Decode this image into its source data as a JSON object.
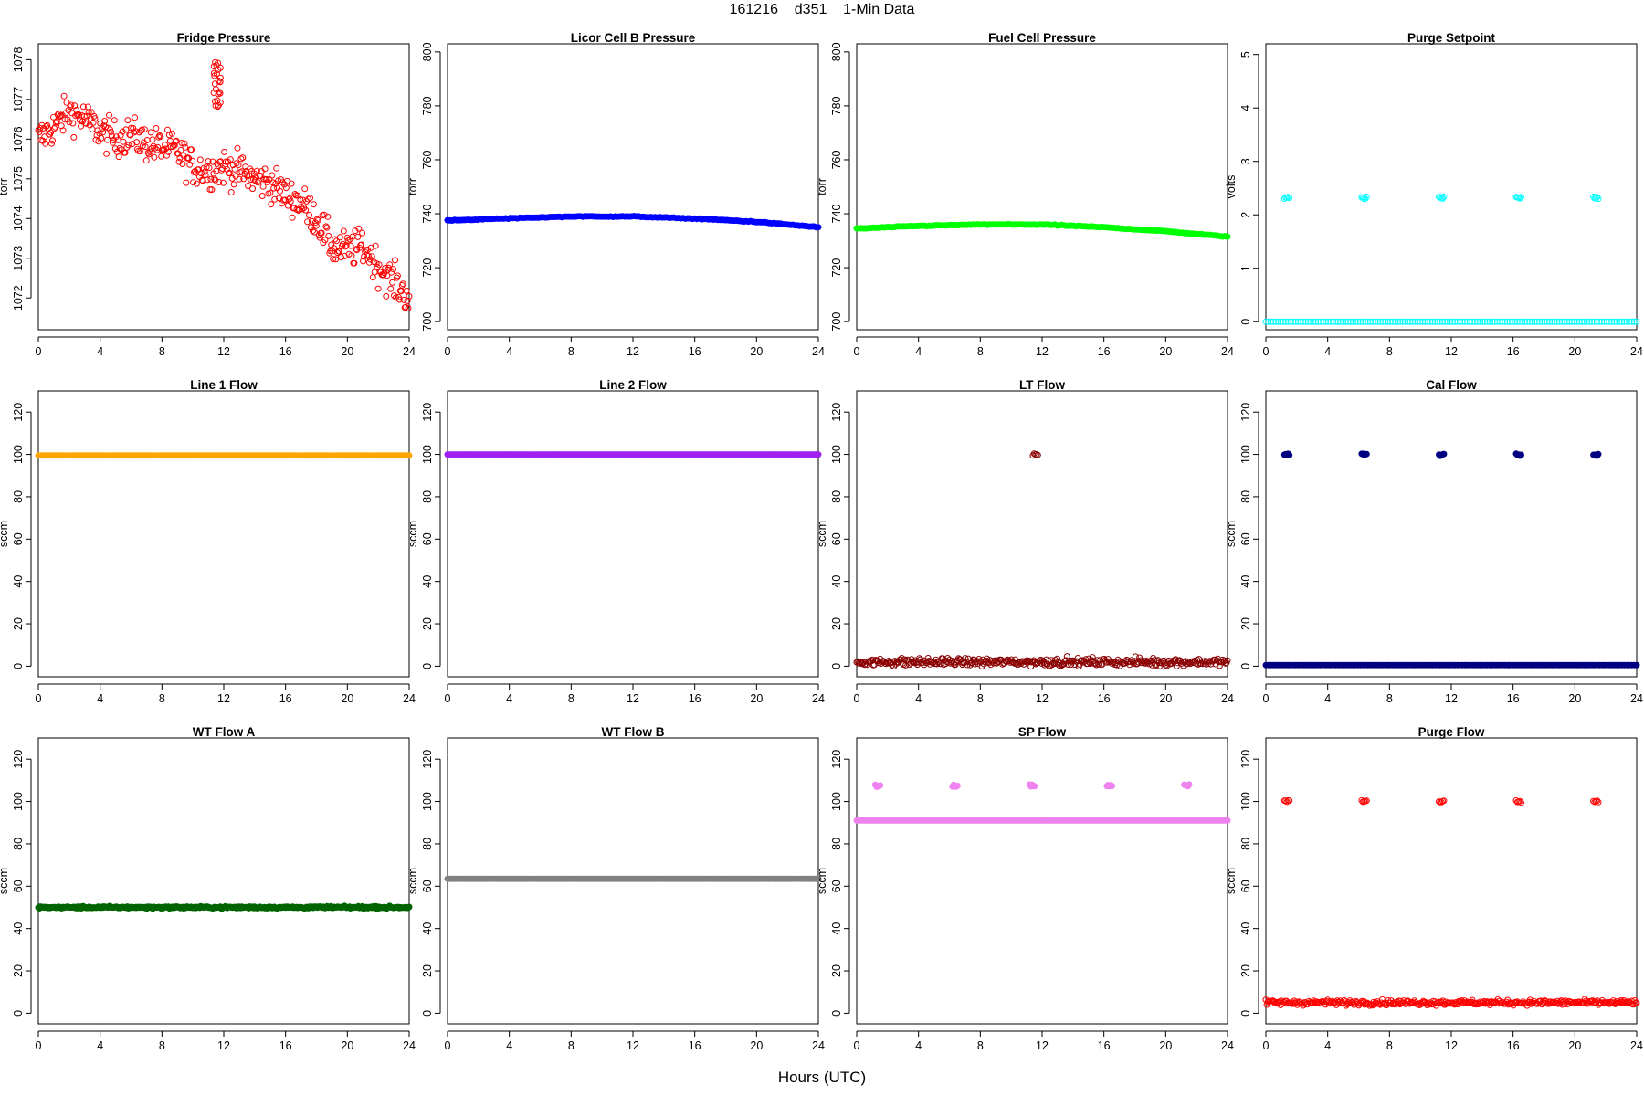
{
  "title": "161216    d351    1-Min Data",
  "x_caption": "Hours (UTC)",
  "chart_data": [
    {
      "name": "fridge-pressure",
      "type": "scatter",
      "title": "Fridge Pressure",
      "ylabel": "torr",
      "xlim": [
        0,
        24
      ],
      "ylim": [
        1071.2,
        1078.4
      ],
      "yticks": [
        1072,
        1073,
        1074,
        1075,
        1076,
        1077,
        1078
      ],
      "xticks": [
        0,
        4,
        8,
        12,
        16,
        20,
        24
      ],
      "color": "#ff0000",
      "marker": "open",
      "trend": [
        [
          0,
          1076.0
        ],
        [
          1,
          1076.3
        ],
        [
          2,
          1076.7
        ],
        [
          3,
          1076.5
        ],
        [
          4,
          1076.2
        ],
        [
          5,
          1076.0
        ],
        [
          6,
          1076.1
        ],
        [
          7,
          1075.9
        ],
        [
          8,
          1075.8
        ],
        [
          9,
          1075.7
        ],
        [
          10,
          1075.3
        ],
        [
          11,
          1075.2
        ],
        [
          12,
          1075.3
        ],
        [
          13,
          1075.2
        ],
        [
          14,
          1075.0
        ],
        [
          15,
          1074.9
        ],
        [
          16,
          1074.6
        ],
        [
          17,
          1074.4
        ],
        [
          18,
          1074.0
        ],
        [
          19,
          1073.3
        ],
        [
          20,
          1073.2
        ],
        [
          21,
          1073.3
        ],
        [
          22,
          1072.8
        ],
        [
          23,
          1072.4
        ],
        [
          24,
          1072.0
        ]
      ],
      "noise": 0.9,
      "spike": {
        "x": [
          11.3,
          11.8
        ],
        "y": [
          1076.8,
          1078.0
        ]
      }
    },
    {
      "name": "licor-cell-b-pressure",
      "type": "scatter",
      "title": "Licor Cell B Pressure",
      "ylabel": "torr",
      "xlim": [
        0,
        24
      ],
      "ylim": [
        697,
        803
      ],
      "yticks": [
        700,
        720,
        740,
        760,
        780,
        800
      ],
      "xticks": [
        0,
        4,
        8,
        12,
        16,
        20,
        24
      ],
      "color": "#0000ff",
      "marker": "filled",
      "trend": [
        [
          0,
          737.5
        ],
        [
          4,
          738.3
        ],
        [
          8,
          739.0
        ],
        [
          12,
          739.0
        ],
        [
          16,
          738.2
        ],
        [
          20,
          737.0
        ],
        [
          24,
          735.0
        ]
      ],
      "noise": 0.3
    },
    {
      "name": "fuel-cell-pressure",
      "type": "scatter",
      "title": "Fuel Cell Pressure",
      "ylabel": "torr",
      "xlim": [
        0,
        24
      ],
      "ylim": [
        697,
        803
      ],
      "yticks": [
        700,
        720,
        740,
        760,
        780,
        800
      ],
      "xticks": [
        0,
        4,
        8,
        12,
        16,
        20,
        24
      ],
      "color": "#00ff00",
      "marker": "filled",
      "trend": [
        [
          0,
          734.5
        ],
        [
          4,
          735.5
        ],
        [
          8,
          736.0
        ],
        [
          12,
          736.0
        ],
        [
          16,
          735.0
        ],
        [
          20,
          733.5
        ],
        [
          24,
          731.5
        ]
      ],
      "noise": 0.3
    },
    {
      "name": "purge-setpoint",
      "type": "scatter",
      "title": "Purge Setpoint",
      "ylabel": "volts",
      "xlim": [
        0,
        24
      ],
      "ylim": [
        -0.15,
        5.2
      ],
      "yticks": [
        0,
        1,
        2,
        3,
        4,
        5
      ],
      "xticks": [
        0,
        4,
        8,
        12,
        16,
        20,
        24
      ],
      "color": "#00ffff",
      "marker": "open",
      "baseline": 0,
      "bursts": {
        "x": [
          1.2,
          6.2,
          11.2,
          16.2,
          21.2
        ],
        "y": 2.32
      }
    },
    {
      "name": "line-1-flow",
      "type": "scatter",
      "title": "Line 1 Flow",
      "ylabel": "sccm",
      "xlim": [
        0,
        24
      ],
      "ylim": [
        -5,
        130
      ],
      "yticks": [
        0,
        20,
        40,
        60,
        80,
        100,
        120
      ],
      "xticks": [
        0,
        4,
        8,
        12,
        16,
        20,
        24
      ],
      "color": "#ffa500",
      "marker": "filled",
      "baseline": 99.5
    },
    {
      "name": "line-2-flow",
      "type": "scatter",
      "title": "Line 2 Flow",
      "ylabel": "sccm",
      "xlim": [
        0,
        24
      ],
      "ylim": [
        -5,
        130
      ],
      "yticks": [
        0,
        20,
        40,
        60,
        80,
        100,
        120
      ],
      "xticks": [
        0,
        4,
        8,
        12,
        16,
        20,
        24
      ],
      "color": "#a020f0",
      "marker": "filled",
      "baseline": 100
    },
    {
      "name": "lt-flow",
      "type": "scatter",
      "title": "LT Flow",
      "ylabel": "sccm",
      "xlim": [
        0,
        24
      ],
      "ylim": [
        -5,
        130
      ],
      "yticks": [
        0,
        20,
        40,
        60,
        80,
        100,
        120
      ],
      "xticks": [
        0,
        4,
        8,
        12,
        16,
        20,
        24
      ],
      "color": "#8b0000",
      "marker": "open",
      "baseline": 2,
      "noise": 3,
      "bursts": {
        "x": [
          11.4
        ],
        "y": 100
      }
    },
    {
      "name": "cal-flow",
      "type": "scatter",
      "title": "Cal Flow",
      "ylabel": "sccm",
      "xlim": [
        0,
        24
      ],
      "ylim": [
        -5,
        130
      ],
      "yticks": [
        0,
        20,
        40,
        60,
        80,
        100,
        120
      ],
      "xticks": [
        0,
        4,
        8,
        12,
        16,
        20,
        24
      ],
      "color": "#000080",
      "marker": "filled",
      "baseline": 0.5,
      "bursts": {
        "x": [
          1.2,
          6.2,
          11.2,
          16.2,
          21.2
        ],
        "y": 99.8
      }
    },
    {
      "name": "wt-flow-a",
      "type": "scatter",
      "title": "WT Flow A",
      "ylabel": "sccm",
      "xlim": [
        0,
        24
      ],
      "ylim": [
        -5,
        130
      ],
      "yticks": [
        0,
        20,
        40,
        60,
        80,
        100,
        120
      ],
      "xticks": [
        0,
        4,
        8,
        12,
        16,
        20,
        24
      ],
      "color": "#006400",
      "marker": "filled",
      "baseline": 50,
      "noise": 0.8
    },
    {
      "name": "wt-flow-b",
      "type": "scatter",
      "title": "WT Flow B",
      "ylabel": "sccm",
      "xlim": [
        0,
        24
      ],
      "ylim": [
        -5,
        130
      ],
      "yticks": [
        0,
        20,
        40,
        60,
        80,
        100,
        120
      ],
      "xticks": [
        0,
        4,
        8,
        12,
        16,
        20,
        24
      ],
      "color": "#808080",
      "marker": "filled",
      "baseline": 63.5
    },
    {
      "name": "sp-flow",
      "type": "scatter",
      "title": "SP Flow",
      "ylabel": "sccm",
      "xlim": [
        0,
        24
      ],
      "ylim": [
        -5,
        130
      ],
      "yticks": [
        0,
        20,
        40,
        60,
        80,
        100,
        120
      ],
      "xticks": [
        0,
        4,
        8,
        12,
        16,
        20,
        24
      ],
      "color": "#ee82ee",
      "marker": "filled",
      "baseline": 91,
      "bursts": {
        "x": [
          1.2,
          6.2,
          11.2,
          16.2,
          21.2
        ],
        "y": 107.5
      }
    },
    {
      "name": "purge-flow",
      "type": "scatter",
      "title": "Purge Flow",
      "ylabel": "sccm",
      "xlim": [
        0,
        24
      ],
      "ylim": [
        -5,
        130
      ],
      "yticks": [
        0,
        20,
        40,
        60,
        80,
        100,
        120
      ],
      "xticks": [
        0,
        4,
        8,
        12,
        16,
        20,
        24
      ],
      "color": "#ff0000",
      "marker": "open",
      "baseline": 5,
      "noise": 2,
      "bursts": {
        "x": [
          1.2,
          6.2,
          11.2,
          16.2,
          21.2
        ],
        "y": 100
      }
    }
  ]
}
